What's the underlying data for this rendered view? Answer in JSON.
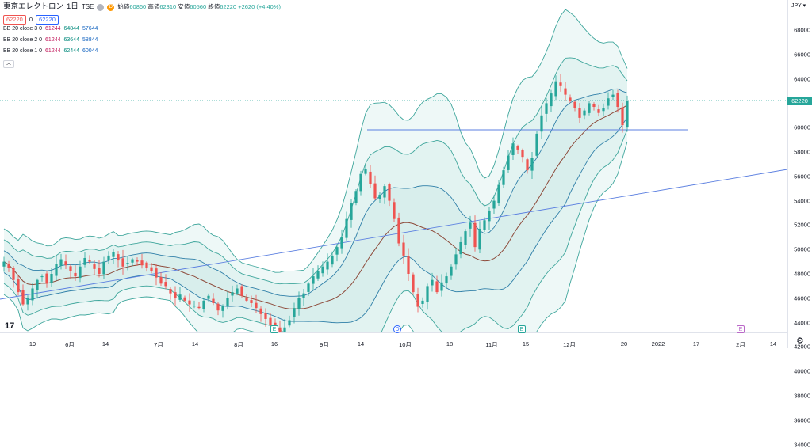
{
  "header": {
    "symbol": "東京エレクトロン",
    "interval": "1日",
    "exchange": "TSE",
    "ohlc": {
      "open_label": "始値",
      "open": "60860",
      "high_label": "高値",
      "high": "62310",
      "low_label": "安値",
      "low": "60560",
      "close_label": "終値",
      "close": "62220",
      "change": "+2620 (+4.40%)"
    },
    "delay_badge": "D",
    "sell_price": "62220",
    "spread": "0",
    "buy_price": "62220"
  },
  "indicators": [
    {
      "name": "BB 20 close 3 0",
      "mid": "61244",
      "upper": "64844",
      "lower": "57644"
    },
    {
      "name": "BB 20 close 2 0",
      "mid": "61244",
      "upper": "63644",
      "lower": "58844"
    },
    {
      "name": "BB 20 close 1 0",
      "mid": "61244",
      "upper": "62444",
      "lower": "60044"
    }
  ],
  "currency": "JPY",
  "last_price_label": "62220",
  "price_axis": [
    "68000",
    "66000",
    "64000",
    "62000",
    "60000",
    "58000",
    "56000",
    "54000",
    "52000",
    "50000",
    "48000",
    "46000",
    "44000",
    "42000",
    "40000",
    "38000",
    "36000",
    "34000"
  ],
  "time_axis": [
    "19",
    "6月",
    "14",
    "7月",
    "14",
    "8月",
    "16",
    "9月",
    "14",
    "10月",
    "18",
    "11月",
    "15",
    "12月",
    "20",
    "2022",
    "17",
    "2月",
    "14"
  ],
  "markers": [
    {
      "label": "E"
    },
    {
      "label": "D"
    },
    {
      "label": "E"
    },
    {
      "label": "E"
    }
  ],
  "colors": {
    "up": "#26a69a",
    "down": "#ef5350",
    "basis": "#8d4a3a",
    "band": "#3fa69c",
    "trendline": "#5b7fe0"
  },
  "chart_data": {
    "type": "candlestick",
    "series_meaning": "daily closing prices (approximate) of 東京エレクトロン",
    "ylim": [
      33000,
      69000
    ],
    "close": [
      49000,
      48500,
      47500,
      46500,
      45500,
      46000,
      46800,
      47500,
      47800,
      47200,
      48000,
      48800,
      49200,
      48700,
      48200,
      47800,
      48600,
      49300,
      49000,
      48400,
      48000,
      49000,
      49500,
      49800,
      49100,
      48600,
      48900,
      49200,
      49000,
      48700,
      48500,
      48200,
      47700,
      47200,
      47000,
      46400,
      46000,
      46300,
      45800,
      45500,
      45400,
      45200,
      45800,
      46200,
      45600,
      45000,
      45400,
      46000,
      46500,
      46800,
      46200,
      45800,
      45600,
      45200,
      44700,
      44300,
      43800,
      43500,
      43200,
      43600,
      44200,
      45200,
      46000,
      46400,
      47200,
      47800,
      48200,
      48600,
      49000,
      49500,
      50200,
      51000,
      52500,
      53800,
      54800,
      56200,
      56600,
      55400,
      54200,
      54500,
      55200,
      54000,
      52500,
      50500,
      49500,
      48000,
      46500,
      45300,
      45800,
      47000,
      47500,
      46500,
      47300,
      47800,
      48600,
      49600,
      50600,
      51500,
      52200,
      50200,
      51700,
      52400,
      53200,
      54000,
      55300,
      56500,
      57700,
      58700,
      58200,
      57600,
      56500,
      57500,
      59500,
      61000,
      62000,
      62800,
      63800,
      63400,
      62700,
      62200,
      61600,
      60800,
      61400,
      62000,
      61700,
      61200,
      61600,
      62400,
      62700,
      61700,
      60200,
      62220
    ]
  }
}
